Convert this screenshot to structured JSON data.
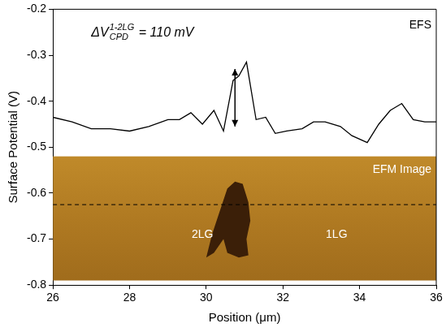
{
  "chart_data": {
    "type": "line",
    "x_label": "Position (μm)",
    "y_label": "Surface Potential (V)",
    "xlim": [
      26,
      36
    ],
    "xticks": [
      26,
      28,
      30,
      32,
      34,
      36
    ],
    "ylim": [
      -0.8,
      -0.2
    ],
    "yticks": [
      -0.8,
      -0.7,
      -0.6,
      -0.5,
      -0.4,
      -0.3,
      -0.2
    ],
    "grid": false,
    "series": [
      {
        "name": "EFS",
        "color": "#000000",
        "marker": "none",
        "line_style": "solid",
        "x": [
          26,
          26.5,
          27,
          27.5,
          28,
          28.5,
          29,
          29.3,
          29.6,
          29.9,
          30.2,
          30.45,
          30.7,
          30.85,
          31.05,
          31.3,
          31.55,
          31.8,
          32.1,
          32.5,
          32.8,
          33.1,
          33.5,
          33.8,
          34.2,
          34.5,
          34.8,
          35.1,
          35.4,
          35.7,
          36
        ],
        "values": [
          -0.435,
          -0.445,
          -0.46,
          -0.46,
          -0.465,
          -0.455,
          -0.44,
          -0.44,
          -0.425,
          -0.45,
          -0.42,
          -0.465,
          -0.355,
          -0.345,
          -0.315,
          -0.44,
          -0.435,
          -0.47,
          -0.465,
          -0.46,
          -0.445,
          -0.445,
          -0.455,
          -0.475,
          -0.49,
          -0.45,
          -0.42,
          -0.405,
          -0.44,
          -0.445,
          -0.445
        ]
      }
    ],
    "annotations": [
      {
        "text": "ΔV",
        "subscript": "CPD",
        "superscript": "1-2LG",
        "suffix": " = 110 mV"
      },
      {
        "text": "EFS"
      },
      {
        "text": "EFM Image"
      },
      {
        "text": "2LG"
      },
      {
        "text": "1LG"
      }
    ],
    "arrow": {
      "x": 30.75,
      "y": [
        -0.455,
        -0.33
      ]
    },
    "efm_band": {
      "ylim": [
        -0.79,
        -0.52
      ]
    },
    "dashed_line_y": -0.625,
    "flake": {
      "x": [
        30.55,
        30.75,
        30.95,
        31.1,
        31.15,
        31.05,
        31.1,
        30.85,
        30.55,
        30.45,
        30.2,
        30.0,
        30.15,
        30.35
      ],
      "y": [
        -0.59,
        -0.575,
        -0.58,
        -0.62,
        -0.66,
        -0.7,
        -0.735,
        -0.74,
        -0.73,
        -0.7,
        -0.73,
        -0.74,
        -0.69,
        -0.64
      ]
    }
  }
}
